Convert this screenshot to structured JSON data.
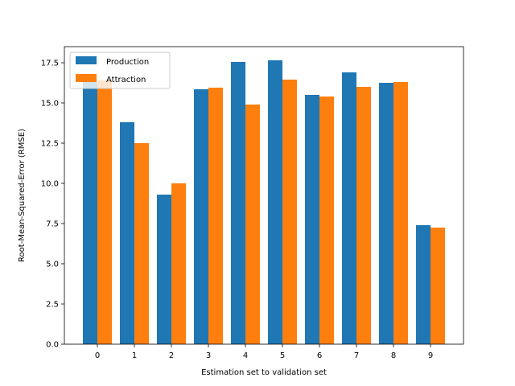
{
  "chart_data": {
    "type": "bar",
    "title": "",
    "xlabel": "Estimation set to validation set",
    "ylabel": "Root-Mean-Squared-Error (RMSE)",
    "categories": [
      "0",
      "1",
      "2",
      "3",
      "4",
      "5",
      "6",
      "7",
      "8",
      "9"
    ],
    "ylim": [
      0,
      18.5
    ],
    "yticks": [
      0.0,
      2.5,
      5.0,
      7.5,
      10.0,
      12.5,
      15.0,
      17.5
    ],
    "ytick_labels": [
      "0.0",
      "2.5",
      "5.0",
      "7.5",
      "10.0",
      "12.5",
      "15.0",
      "17.5"
    ],
    "grid": false,
    "legend_position": "top-left",
    "series": [
      {
        "name": "Production",
        "color": "#1f77b4",
        "values": [
          16.3,
          13.8,
          9.3,
          15.85,
          17.55,
          17.65,
          15.5,
          16.9,
          16.25,
          7.4
        ]
      },
      {
        "name": "Attraction",
        "color": "#ff7f0e",
        "values": [
          16.4,
          12.5,
          10.0,
          15.95,
          14.9,
          16.45,
          15.4,
          16.0,
          16.3,
          7.25
        ]
      }
    ]
  }
}
